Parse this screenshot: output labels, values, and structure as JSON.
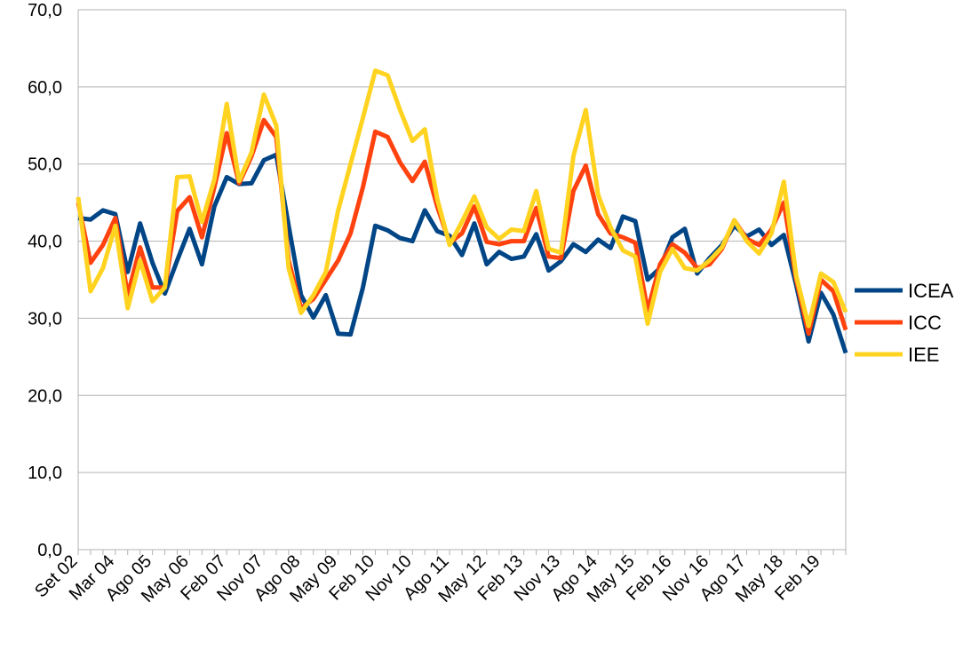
{
  "chart_data": {
    "type": "line",
    "title": "",
    "xlabel": "",
    "ylabel": "",
    "ylim": [
      0,
      70
    ],
    "yticks": [
      "0,0",
      "10,0",
      "20,0",
      "30,0",
      "40,0",
      "50,0",
      "60,0",
      "70,0"
    ],
    "grid": "horizontal",
    "legend": "right",
    "x_tick_labels": [
      "Set 02",
      "Mar 04",
      "Ago 05",
      "May 06",
      "Feb 07",
      "Nov 07",
      "Ago 08",
      "May 09",
      "Feb 10",
      "Nov 10",
      "Ago 11",
      "May 12",
      "Feb 13",
      "Nov 13",
      "Ago 14",
      "May 15",
      "Feb 16",
      "Nov 16",
      "Ago 17",
      "May 18",
      "Feb 19"
    ],
    "series": [
      {
        "name": "ICEA",
        "color": "#004586",
        "values": [
          43.0,
          42.8,
          44.0,
          43.5,
          36.0,
          42.3,
          37.2,
          33.2,
          37.5,
          41.6,
          37.0,
          44.5,
          48.3,
          47.4,
          47.5,
          50.5,
          51.2,
          42.0,
          33.0,
          30.1,
          33.0,
          28.0,
          27.9,
          34.0,
          42.0,
          41.4,
          40.4,
          40.0,
          44.0,
          41.3,
          40.7,
          38.2,
          42.3,
          37.0,
          38.6,
          37.7,
          38.0,
          40.9,
          36.2,
          37.4,
          39.6,
          38.6,
          40.2,
          39.1,
          43.2,
          42.6,
          35.0,
          36.5,
          40.5,
          41.6,
          35.8,
          37.8,
          39.5,
          42.0,
          40.6,
          41.5,
          39.5,
          40.8,
          34.3,
          27.0,
          33.3,
          30.5,
          25.5
        ]
      },
      {
        "name": "ICC",
        "color": "#ff420e",
        "values": [
          45.0,
          37.2,
          39.5,
          43.0,
          33.0,
          39.2,
          34.0,
          34.0,
          43.9,
          45.7,
          40.5,
          47.0,
          54.0,
          47.5,
          51.0,
          55.7,
          53.5,
          37.5,
          31.3,
          32.5,
          35.0,
          37.5,
          41.0,
          47.0,
          54.2,
          53.5,
          50.2,
          47.8,
          50.3,
          44.5,
          39.8,
          41.0,
          44.5,
          39.9,
          39.6,
          40.0,
          40.0,
          44.3,
          38.0,
          37.8,
          46.5,
          49.8,
          43.5,
          41.0,
          40.5,
          39.8,
          31.0,
          37.0,
          39.6,
          38.5,
          36.5,
          37.0,
          39.0,
          42.7,
          40.3,
          39.5,
          41.5,
          45.0,
          35.0,
          28.0,
          35.0,
          33.5,
          28.5
        ]
      },
      {
        "name": "IEE",
        "color": "#ffd320",
        "values": [
          45.7,
          33.5,
          36.5,
          42.0,
          31.3,
          37.5,
          32.2,
          34.0,
          48.3,
          48.4,
          42.5,
          48.0,
          57.8,
          47.8,
          51.5,
          59.0,
          55.0,
          36.5,
          30.7,
          33.0,
          36.0,
          44.0,
          50.0,
          56.0,
          62.1,
          61.5,
          57.0,
          53.0,
          54.5,
          45.5,
          39.5,
          42.5,
          45.8,
          41.8,
          40.3,
          41.5,
          41.3,
          46.5,
          39.0,
          38.5,
          51.0,
          57.0,
          46.0,
          41.8,
          38.8,
          38.0,
          29.3,
          36.0,
          39.0,
          36.5,
          36.2,
          37.5,
          39.2,
          42.7,
          40.0,
          38.4,
          41.0,
          47.7,
          35.5,
          29.0,
          35.8,
          34.7,
          30.8
        ]
      }
    ]
  }
}
